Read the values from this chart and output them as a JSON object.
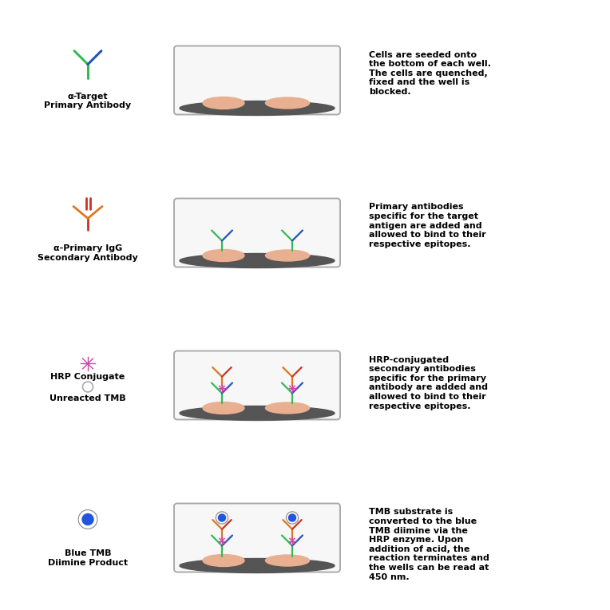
{
  "rows": [
    {
      "legend_label": "α-Target\nPrimary Antibody",
      "description": "Cells are seeded onto\nthe bottom of each well.\nThe cells are quenched,\nfixed and the well is\nblocked.",
      "stage": 1
    },
    {
      "legend_label": "α-Primary IgG\nSecondary Antibody",
      "description": "Primary antibodies\nspecific for the target\nantigen are added and\nallowed to bind to their\nrespective epitopes.",
      "stage": 2
    },
    {
      "legend_label": "HRP Conjugate",
      "legend_label2": "Unreacted TMB",
      "description": "HRP-conjugated\nsecondary antibodies\nspecific for the primary\nantibody are added and\nallowed to bind to their\nrespective epitopes.",
      "stage": 3
    },
    {
      "legend_label": "Blue TMB\nDiimine Product",
      "description": "TMB substrate is\nconverted to the blue\nTMB diimine via the\nHRP enzyme. Upon\naddition of acid, the\nreaction terminates and\nthe wells can be read at\n450 nm.",
      "stage": 4
    }
  ],
  "bg_color": "#ffffff",
  "text_color": "#000000",
  "well_fill": "#f5f5f5",
  "well_border": "#aaaaaa",
  "well_bottom_color": "#555555",
  "cell_color": "#e8b090",
  "c_green": "#33bb55",
  "c_blue": "#2255bb",
  "c_orange": "#dd7722",
  "c_red": "#cc3322",
  "c_pink": "#cc44aa",
  "c_tmb": "#2255dd"
}
